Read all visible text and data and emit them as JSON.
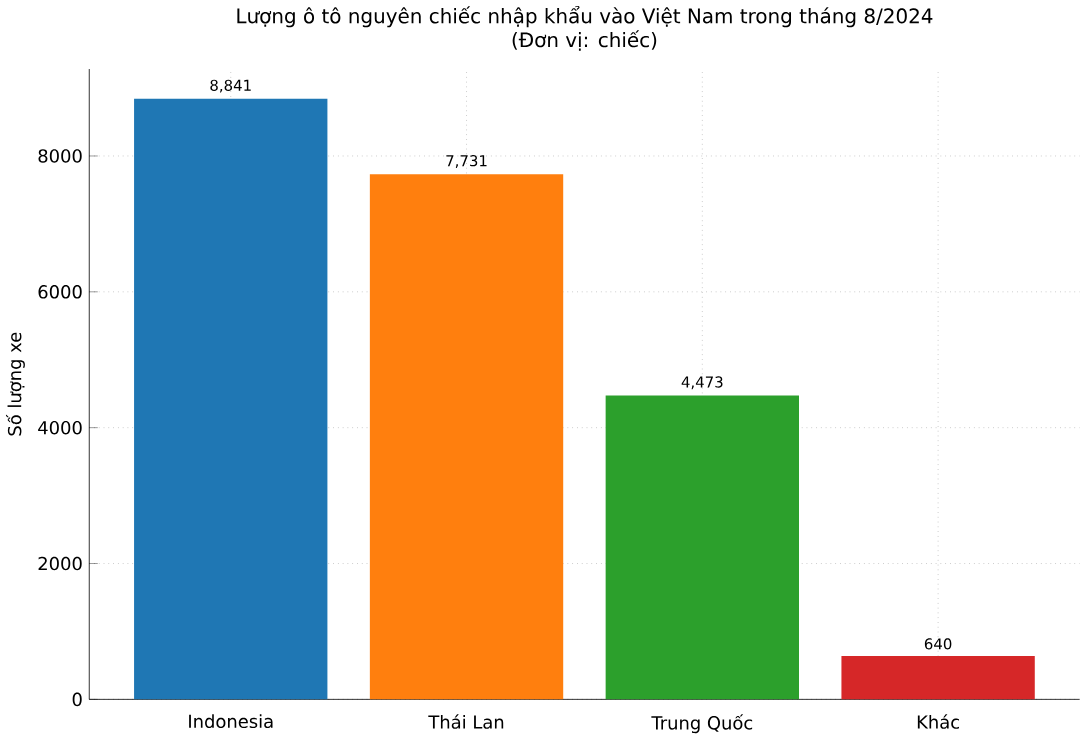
{
  "chart_data": {
    "type": "bar",
    "title": "Lượng ô tô nguyên chiếc nhập khẩu vào Việt Nam trong tháng 8/2024",
    "subtitle": "(Đơn vị: chiếc)",
    "ylabel": "Số lượng xe",
    "categories": [
      "Indonesia",
      "Thái Lan",
      "Trung Quốc",
      "Khác"
    ],
    "values": [
      8841,
      7731,
      4473,
      640
    ],
    "colors": [
      "#1f77b4",
      "#ff7f0e",
      "#2ca02c",
      "#d62728"
    ],
    "value_labels": [
      "8,841",
      "7,731",
      "4,473",
      "640"
    ],
    "ylim": [
      0,
      9280
    ],
    "yticks": [
      0,
      2000,
      4000,
      6000,
      8000
    ],
    "grid": true
  }
}
